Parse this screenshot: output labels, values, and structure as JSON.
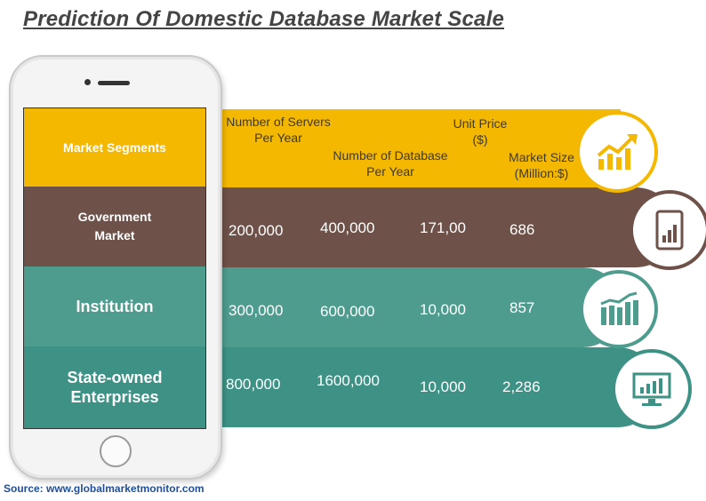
{
  "title": "Prediction Of Domestic Database Market Scale",
  "headers": {
    "segments": "Market Segments",
    "servers": "Number of Servers Per Year",
    "database": "Number of Database Per Year",
    "price": "Unit Price ($)",
    "size": "Market Size (Million:$)"
  },
  "rows": [
    {
      "segment": "Government Market",
      "servers": "200,000",
      "database": "400,000",
      "price": "171,00",
      "size": "686",
      "icon": "tablet-chart-icon"
    },
    {
      "segment": "Institution",
      "servers": "300,000",
      "database": "600,000",
      "price": "10,000",
      "size": "857",
      "icon": "bar-chart-icon"
    },
    {
      "segment": "State-owned Enterprises",
      "servers": "800,000",
      "database": "1600,000",
      "price": "10,000",
      "size": "2,286",
      "icon": "monitor-chart-icon"
    }
  ],
  "header_icon": "growth-chart-icon",
  "source": "Source: www.globalmarketmonitor.com",
  "colors": {
    "yellow": "#F5B800",
    "brown": "#6E5249",
    "teal1": "#4E9C8E",
    "teal2": "#3D9285",
    "source": "#1F4E9A"
  }
}
